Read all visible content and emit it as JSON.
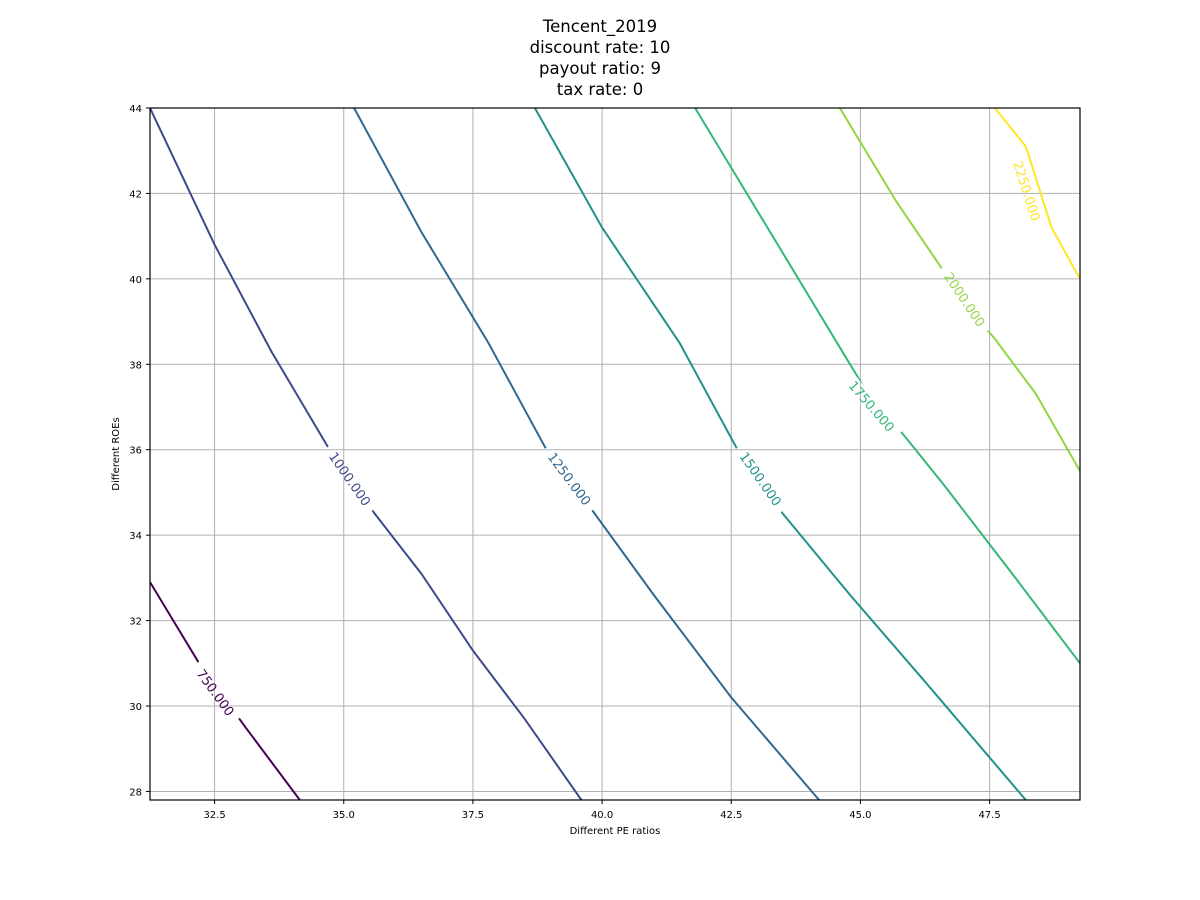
{
  "chart_data": {
    "type": "contour",
    "title_lines": [
      "Tencent_2019",
      "discount rate: 10",
      "payout ratio: 9",
      "tax rate: 0"
    ],
    "xlabel": "Different PE ratios",
    "ylabel": "Different ROEs",
    "xlim": [
      31.25,
      49.25
    ],
    "ylim": [
      27.8,
      44.0
    ],
    "x_ticks": [
      32.5,
      35.0,
      37.5,
      40.0,
      42.5,
      45.0,
      47.5
    ],
    "x_tick_labels": [
      "32.5",
      "35.0",
      "37.5",
      "40.0",
      "42.5",
      "45.0",
      "47.5"
    ],
    "y_ticks": [
      28,
      30,
      32,
      34,
      36,
      38,
      40,
      42,
      44
    ],
    "y_tick_labels": [
      "28",
      "30",
      "32",
      "34",
      "36",
      "38",
      "40",
      "42",
      "44"
    ],
    "grid": true,
    "colormap": "viridis",
    "levels": [
      {
        "value": 750,
        "label": "750.000",
        "color": "#440154",
        "points": [
          [
            31.25,
            32.9
          ],
          [
            32.2,
            31.0
          ],
          [
            33.1,
            29.5
          ],
          [
            34.15,
            27.8
          ]
        ],
        "label_at": [
          32.5,
          30.3
        ]
      },
      {
        "value": 1000,
        "label": "1000.000",
        "color": "#3e4989",
        "points": [
          [
            31.25,
            44.0
          ],
          [
            32.5,
            40.8
          ],
          [
            33.6,
            38.3
          ],
          [
            34.7,
            36.05
          ],
          [
            35.6,
            34.5
          ],
          [
            36.5,
            33.1
          ],
          [
            37.5,
            31.3
          ],
          [
            38.5,
            29.7
          ],
          [
            39.6,
            27.8
          ]
        ],
        "label_at": [
          35.1,
          35.3
        ]
      },
      {
        "value": 1250,
        "label": "1250.000",
        "color": "#31688e",
        "points": [
          [
            35.2,
            44.0
          ],
          [
            36.5,
            41.1
          ],
          [
            37.8,
            38.5
          ],
          [
            38.9,
            36.05
          ],
          [
            39.8,
            34.6
          ],
          [
            41.0,
            32.6
          ],
          [
            42.5,
            30.2
          ],
          [
            44.2,
            27.8
          ]
        ],
        "label_at": [
          39.35,
          35.3
        ]
      },
      {
        "value": 1500,
        "label": "1500.000",
        "color": "#21918c",
        "points": [
          [
            38.7,
            44.0
          ],
          [
            40.0,
            41.2
          ],
          [
            41.5,
            38.5
          ],
          [
            42.6,
            36.05
          ],
          [
            43.5,
            34.5
          ],
          [
            44.8,
            32.6
          ],
          [
            46.3,
            30.5
          ],
          [
            48.2,
            27.8
          ]
        ],
        "label_at": [
          43.05,
          35.3
        ]
      },
      {
        "value": 1750,
        "label": "1750.000",
        "color": "#35b779",
        "points": [
          [
            41.8,
            44.0
          ],
          [
            43.0,
            41.6
          ],
          [
            44.7,
            38.2
          ],
          [
            45.1,
            37.4
          ],
          [
            45.6,
            36.7
          ],
          [
            46.6,
            35.2
          ],
          [
            48.0,
            33.0
          ],
          [
            49.25,
            31.0
          ]
        ],
        "label_at": [
          45.2,
          37.0
        ]
      },
      {
        "value": 2000,
        "label": "2000.000",
        "color": "#90d743",
        "points": [
          [
            44.6,
            44.0
          ],
          [
            45.7,
            41.8
          ],
          [
            46.6,
            40.2
          ],
          [
            47.1,
            39.3
          ],
          [
            47.6,
            38.6
          ],
          [
            48.4,
            37.3
          ],
          [
            49.25,
            35.5
          ]
        ],
        "label_at": [
          47.0,
          39.5
        ]
      },
      {
        "value": 2250,
        "label": "2250.000",
        "color": "#fde725",
        "points": [
          [
            47.6,
            44.0
          ],
          [
            48.2,
            43.1
          ],
          [
            48.7,
            41.2
          ],
          [
            49.25,
            40.0
          ]
        ],
        "label_at": [
          48.2,
          42.05
        ]
      }
    ]
  }
}
